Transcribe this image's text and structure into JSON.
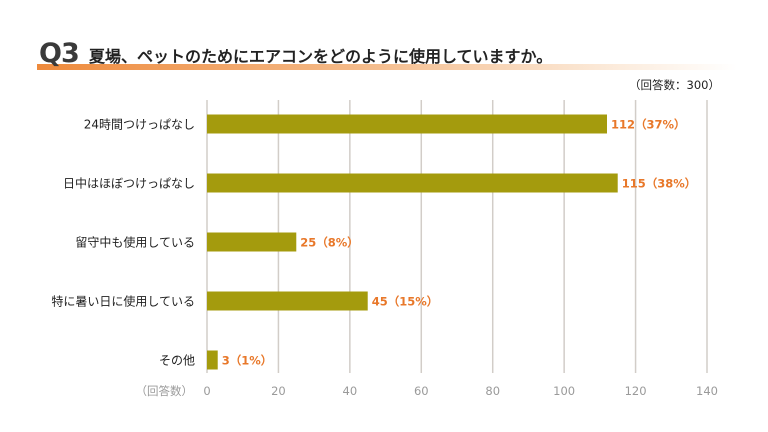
{
  "header": {
    "q_number": "Q3",
    "question": "夏場、ペットのためにエアコンをどのように使用していますか。",
    "respondents": "（回答数：300）"
  },
  "colors": {
    "bar": "#a49b0d",
    "value_label": "#e8782a",
    "axis_text": "#9a9a9a",
    "grid": "#d2cdc8",
    "accent": "#ee8a3c"
  },
  "chart_data": {
    "type": "bar",
    "orientation": "horizontal",
    "categories": [
      "24時間つけっぱなし",
      "日中はほぼつけっぱなし",
      "留守中も使用している",
      "特に暑い日に使用している",
      "その他"
    ],
    "values": [
      112,
      115,
      25,
      45,
      3
    ],
    "data_labels": [
      "112（37%）",
      "115（38%）",
      "25（8%）",
      "45（15%）",
      "3（1%）"
    ],
    "xlim": [
      0,
      140
    ],
    "xticks": [
      0,
      20,
      40,
      60,
      80,
      100,
      120,
      140
    ],
    "xlabel": "（回答数）",
    "grid": true
  }
}
